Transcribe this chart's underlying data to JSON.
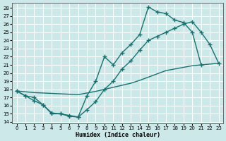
{
  "xlabel": "Humidex (Indice chaleur)",
  "bg_color": "#cce8e8",
  "grid_color": "#ffffff",
  "line_color": "#1a7070",
  "xlim": [
    -0.5,
    23.5
  ],
  "ylim": [
    13.8,
    28.6
  ],
  "yticks": [
    14,
    15,
    16,
    17,
    18,
    19,
    20,
    21,
    22,
    23,
    24,
    25,
    26,
    27,
    28
  ],
  "xticks": [
    0,
    1,
    2,
    3,
    4,
    5,
    6,
    7,
    8,
    9,
    10,
    11,
    12,
    13,
    14,
    15,
    16,
    17,
    18,
    19,
    20,
    21,
    22,
    23
  ],
  "curve1_x": [
    0,
    1,
    2,
    3,
    4,
    5,
    6,
    7,
    8,
    9,
    10,
    11,
    12,
    13,
    14,
    15,
    16,
    17,
    18,
    19,
    20,
    21
  ],
  "curve1_y": [
    17.8,
    17.2,
    17.0,
    16.1,
    15.1,
    15.0,
    14.7,
    14.6,
    17.2,
    19.0,
    22.0,
    21.0,
    22.5,
    23.5,
    24.7,
    28.1,
    27.5,
    27.3,
    26.5,
    26.2,
    25.0,
    21.0
  ],
  "curve2_x": [
    0,
    1,
    2,
    3,
    4,
    5,
    6,
    7,
    8,
    9,
    10,
    11,
    12,
    13,
    14,
    15,
    16,
    17,
    18,
    19,
    20,
    21,
    22,
    23
  ],
  "curve2_y": [
    17.8,
    17.2,
    16.6,
    16.1,
    15.0,
    15.0,
    14.8,
    14.6,
    15.5,
    16.5,
    18.0,
    19.0,
    20.5,
    21.5,
    22.8,
    24.0,
    24.5,
    25.0,
    25.5,
    26.0,
    26.3,
    25.0,
    23.5,
    21.2
  ],
  "curve3_x": [
    0,
    1,
    2,
    3,
    4,
    5,
    6,
    7,
    8,
    9,
    10,
    11,
    12,
    13,
    14,
    15,
    16,
    17,
    18,
    19,
    20,
    21,
    22,
    23
  ],
  "curve3_y": [
    17.8,
    17.7,
    17.6,
    17.55,
    17.5,
    17.45,
    17.4,
    17.35,
    17.55,
    17.75,
    18.0,
    18.25,
    18.5,
    18.75,
    19.1,
    19.5,
    19.9,
    20.3,
    20.5,
    20.7,
    20.9,
    21.0,
    21.1,
    21.2
  ]
}
